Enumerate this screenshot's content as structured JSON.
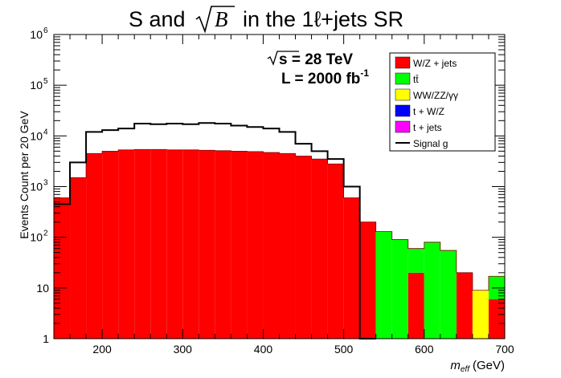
{
  "chart_data": {
    "type": "bar",
    "subtype": "stacked-histogram-log",
    "title_prefix": "S and",
    "title_sqrt": "B",
    "title_suffix": "in the 1ℓ+jets SR",
    "xlabel_main": "m",
    "xlabel_sub": "eff",
    "xlabel_unit": "(GeV)",
    "ylabel": "Events Count per 20 GeV",
    "annotation_energy": "s = 28 TeV",
    "annotation_lumi_main": "L = 2000 fb",
    "annotation_lumi_exp": "-1",
    "xlim": [
      140,
      700
    ],
    "ylim_log": [
      1,
      1000000
    ],
    "log_y": true,
    "x_ticks": [
      "200",
      "300",
      "400",
      "500",
      "600",
      "700"
    ],
    "y_ticks": [
      {
        "value": 1,
        "label": "1"
      },
      {
        "value": 10,
        "label": "10"
      },
      {
        "value": 100,
        "label": "10",
        "exp": "2"
      },
      {
        "value": 1000,
        "label": "10",
        "exp": "3"
      },
      {
        "value": 10000,
        "label": "10",
        "exp": "4"
      },
      {
        "value": 100000,
        "label": "10",
        "exp": "5"
      },
      {
        "value": 1000000,
        "label": "10",
        "exp": "6"
      }
    ],
    "bin_edges": [
      140,
      160,
      180,
      200,
      220,
      240,
      260,
      280,
      300,
      320,
      340,
      360,
      380,
      400,
      420,
      440,
      460,
      480,
      500,
      520,
      540,
      560,
      580,
      600,
      620,
      640,
      660,
      680,
      700
    ],
    "series": [
      {
        "name": "W/Z + jets",
        "color": "#ff0000",
        "values": [
          600,
          1500,
          4500,
          5000,
          5300,
          5400,
          5400,
          5300,
          5300,
          5200,
          5100,
          5000,
          4900,
          4700,
          4500,
          4000,
          3500,
          2800,
          600,
          200,
          0,
          0,
          20,
          0,
          0,
          20,
          0,
          6
        ]
      },
      {
        "name": "tt̄",
        "color": "#00ff00",
        "values": [
          0,
          0,
          0,
          0,
          0,
          0,
          0,
          0,
          0,
          0,
          0,
          0,
          0,
          0,
          0,
          0,
          0,
          0,
          0,
          0,
          130,
          90,
          40,
          80,
          55,
          0,
          0,
          11
        ]
      },
      {
        "name": "WW/ZZ/γγ",
        "color": "#ffff00",
        "values": [
          0,
          0,
          0,
          0,
          0,
          0,
          0,
          0,
          0,
          0,
          0,
          0,
          0,
          0,
          0,
          0,
          0,
          0,
          0,
          0,
          0,
          0,
          0,
          0,
          0,
          0,
          9,
          0
        ]
      },
      {
        "name": "t + W/Z",
        "color": "#0000ff",
        "values": [
          0,
          0,
          0,
          0,
          0,
          0,
          0,
          0,
          0,
          0,
          0,
          0,
          0,
          0,
          0,
          0,
          0,
          0,
          0,
          0,
          0,
          0,
          0,
          0,
          0,
          0,
          0,
          0
        ]
      },
      {
        "name": "t + jets",
        "color": "#ff00ff",
        "values": [
          0,
          0,
          0,
          0,
          0,
          0,
          0,
          0,
          0,
          0,
          0,
          0,
          0,
          0,
          0,
          0,
          0,
          0,
          0,
          0,
          0,
          0,
          0,
          0,
          0,
          0,
          0,
          0
        ]
      }
    ],
    "signal": {
      "name": "Signal g",
      "color": "#000000",
      "values": [
        450,
        3000,
        12000,
        13000,
        14000,
        17500,
        17000,
        17500,
        17000,
        18000,
        17500,
        16000,
        15000,
        14000,
        12000,
        7000,
        5000,
        3500,
        1000,
        0,
        0,
        0,
        0,
        0,
        0,
        0,
        0,
        0
      ]
    },
    "legend": {
      "placement": "top-right",
      "entries": [
        {
          "label": "W/Z + jets",
          "color": "#ff0000",
          "kind": "box"
        },
        {
          "label": "tt̄",
          "color": "#00ff00",
          "kind": "box"
        },
        {
          "label": "WW/ZZ/γγ",
          "color": "#ffff00",
          "kind": "box"
        },
        {
          "label": "t + W/Z",
          "color": "#0000ff",
          "kind": "box"
        },
        {
          "label": "t + jets",
          "color": "#ff00ff",
          "kind": "box"
        },
        {
          "label": "Signal g",
          "color": "#000000",
          "kind": "line"
        }
      ]
    }
  }
}
